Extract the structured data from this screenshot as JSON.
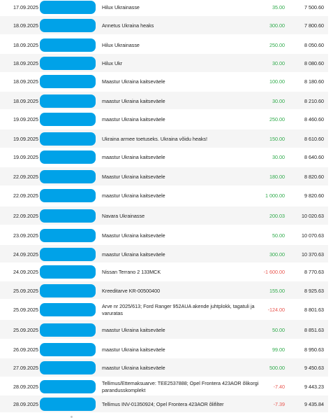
{
  "transactions": [
    {
      "date": "17.09.2025",
      "description": "Hilux Ukrainasse",
      "amount": "35.00",
      "amount_sign": "pos",
      "balance": "7 500.60"
    },
    {
      "date": "18.09.2025",
      "description": "Annetus Ukraina heaks",
      "amount": "300.00",
      "amount_sign": "pos",
      "balance": "7 800.60"
    },
    {
      "date": "18.09.2025",
      "description": "Hilux Ukrainasse",
      "amount": "250.00",
      "amount_sign": "pos",
      "balance": "8 050.60"
    },
    {
      "date": "18.09.2025",
      "description": "Hilux Ukr",
      "amount": "30.00",
      "amount_sign": "pos",
      "balance": "8 080.60"
    },
    {
      "date": "18.09.2025",
      "description": "Maastur Ukraina kaitseväele",
      "amount": "100.00",
      "amount_sign": "pos",
      "balance": "8 180.60"
    },
    {
      "date": "18.09.2025",
      "description": "maastur Ukraina kaitseväele",
      "amount": "30.00",
      "amount_sign": "pos",
      "balance": "8 210.60"
    },
    {
      "date": "19.09.2025",
      "description": "maastur Ukraina kaitseväele",
      "amount": "250.00",
      "amount_sign": "pos",
      "balance": "8 460.60"
    },
    {
      "date": "19.09.2025",
      "description": "Ukraina armee toetuseks. Ukraina võidu heaks!",
      "amount": "150.00",
      "amount_sign": "pos",
      "balance": "8 610.60"
    },
    {
      "date": "19.09.2025",
      "description": "maastur Ukraina kaitseväele",
      "amount": "30.00",
      "amount_sign": "pos",
      "balance": "8 640.60"
    },
    {
      "date": "22.09.2025",
      "description": "Maastur Ukraina kaitseväele",
      "amount": "180.00",
      "amount_sign": "pos",
      "balance": "8 820.60"
    },
    {
      "date": "22.09.2025",
      "description": "maastur Ukraina kaitseväele",
      "amount": "1 000.00",
      "amount_sign": "pos",
      "balance": "9 820.60"
    },
    {
      "date": "22.09.2025",
      "description": "Navara Ukrainasse",
      "amount": "200.03",
      "amount_sign": "pos",
      "balance": "10 020.63"
    },
    {
      "date": "23.09.2025",
      "description": "Maastur Ukraina kaitseväele",
      "amount": "50.00",
      "amount_sign": "pos",
      "balance": "10 070.63"
    },
    {
      "date": "24.09.2025",
      "description": "maastur Ukraina kaitseväele",
      "amount": "300.00",
      "amount_sign": "pos",
      "balance": "10 370.63"
    },
    {
      "date": "24.09.2025",
      "description": "Nissan Terrano 2 133MCK",
      "amount": "-1 600.00",
      "amount_sign": "neg",
      "balance": "8 770.63"
    },
    {
      "date": "25.09.2025",
      "description": "Kreeditarve KR-00500400",
      "amount": "155.00",
      "amount_sign": "pos",
      "balance": "8 925.63"
    },
    {
      "date": "25.09.2025",
      "description": "Arve nr 2025/613; Ford Ranger 952AUA akende juhtplokk, tagatuli ja varuratas",
      "amount": "-124.00",
      "amount_sign": "neg",
      "balance": "8 801.63"
    },
    {
      "date": "25.09.2025",
      "description": "maastur Ukraina kaitseväele",
      "amount": "50.00",
      "amount_sign": "pos",
      "balance": "8 851.63"
    },
    {
      "date": "26.09.2025",
      "description": "maastur Ukraina kaitseväele",
      "amount": "99.00",
      "amount_sign": "pos",
      "balance": "8 950.63"
    },
    {
      "date": "27.09.2025",
      "description": "maastur Ukraina kaitseväele",
      "amount": "500.00",
      "amount_sign": "pos",
      "balance": "9 450.63"
    },
    {
      "date": "28.09.2025",
      "description": "Tellimus/Ettemaksuarve: TEE2537888; Opel Frontera 423AOR õlikorgi parandusskomplekt",
      "amount": "-7.40",
      "amount_sign": "neg",
      "balance": "9 443.23"
    },
    {
      "date": "28.09.2025",
      "description": "Tellimus INV-01350924; Opel Frontera 423AOR õlifilter",
      "amount": "-7.39",
      "amount_sign": "neg",
      "balance": "9 435.84"
    }
  ],
  "colors": {
    "positive_amount": "#2eaa4a",
    "negative_amount": "#e8554e",
    "redaction": "#00a2e8",
    "row_stripe": "#f5f5f5"
  }
}
